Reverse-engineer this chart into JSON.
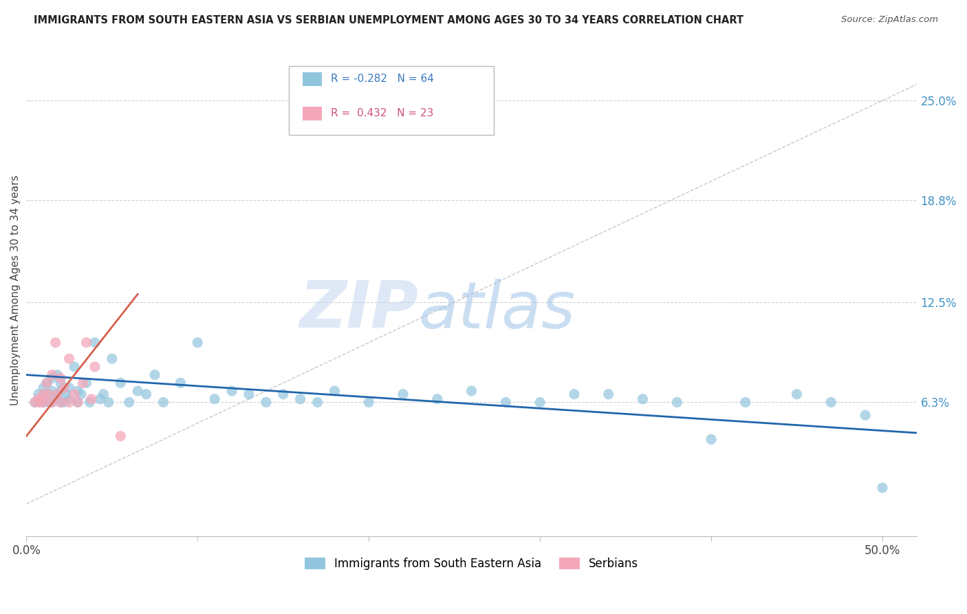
{
  "title": "IMMIGRANTS FROM SOUTH EASTERN ASIA VS SERBIAN UNEMPLOYMENT AMONG AGES 30 TO 34 YEARS CORRELATION CHART",
  "source": "Source: ZipAtlas.com",
  "ylabel": "Unemployment Among Ages 30 to 34 years",
  "y_tick_labels_right": [
    "6.3%",
    "12.5%",
    "18.8%",
    "25.0%"
  ],
  "y_tick_values_right": [
    0.063,
    0.125,
    0.188,
    0.25
  ],
  "xlim": [
    0.0,
    0.52
  ],
  "ylim": [
    -0.02,
    0.285
  ],
  "blue_color": "#92c5de",
  "pink_color": "#f4a7b9",
  "blue_label": "Immigrants from South Eastern Asia",
  "pink_label": "Serbians",
  "blue_R": -0.282,
  "blue_N": 64,
  "pink_R": 0.432,
  "pink_N": 23,
  "watermark_zip": "ZIP",
  "watermark_atlas": "atlas",
  "grid_color": "#d0d0d0",
  "blue_scatter_x": [
    0.005,
    0.007,
    0.008,
    0.01,
    0.01,
    0.012,
    0.012,
    0.013,
    0.015,
    0.015,
    0.015,
    0.017,
    0.018,
    0.018,
    0.02,
    0.02,
    0.02,
    0.022,
    0.023,
    0.025,
    0.025,
    0.028,
    0.03,
    0.03,
    0.032,
    0.035,
    0.037,
    0.04,
    0.043,
    0.045,
    0.048,
    0.05,
    0.055,
    0.06,
    0.065,
    0.07,
    0.075,
    0.08,
    0.09,
    0.1,
    0.11,
    0.12,
    0.13,
    0.14,
    0.15,
    0.16,
    0.17,
    0.18,
    0.2,
    0.22,
    0.24,
    0.26,
    0.28,
    0.3,
    0.32,
    0.34,
    0.36,
    0.38,
    0.4,
    0.42,
    0.45,
    0.47,
    0.49,
    0.5
  ],
  "blue_scatter_y": [
    0.063,
    0.068,
    0.063,
    0.072,
    0.063,
    0.075,
    0.068,
    0.063,
    0.07,
    0.063,
    0.078,
    0.065,
    0.068,
    0.08,
    0.063,
    0.07,
    0.075,
    0.063,
    0.068,
    0.065,
    0.072,
    0.085,
    0.063,
    0.07,
    0.068,
    0.075,
    0.063,
    0.1,
    0.065,
    0.068,
    0.063,
    0.09,
    0.075,
    0.063,
    0.07,
    0.068,
    0.08,
    0.063,
    0.075,
    0.1,
    0.065,
    0.07,
    0.068,
    0.063,
    0.068,
    0.065,
    0.063,
    0.07,
    0.063,
    0.068,
    0.065,
    0.07,
    0.063,
    0.063,
    0.068,
    0.068,
    0.065,
    0.063,
    0.04,
    0.063,
    0.068,
    0.063,
    0.055,
    0.01
  ],
  "pink_scatter_x": [
    0.005,
    0.007,
    0.008,
    0.01,
    0.01,
    0.012,
    0.013,
    0.015,
    0.015,
    0.017,
    0.018,
    0.02,
    0.02,
    0.022,
    0.025,
    0.025,
    0.028,
    0.03,
    0.033,
    0.035,
    0.038,
    0.04,
    0.055
  ],
  "pink_scatter_y": [
    0.063,
    0.065,
    0.063,
    0.068,
    0.063,
    0.075,
    0.068,
    0.063,
    0.08,
    0.1,
    0.068,
    0.063,
    0.078,
    0.072,
    0.063,
    0.09,
    0.068,
    0.063,
    0.075,
    0.1,
    0.065,
    0.085,
    0.042
  ],
  "blue_line_x": [
    0.0,
    0.52
  ],
  "blue_line_y": [
    0.08,
    0.044
  ],
  "pink_line_x": [
    0.0,
    0.065
  ],
  "pink_line_y": [
    0.042,
    0.13
  ],
  "diag_line_x": [
    0.0,
    0.52
  ],
  "diag_line_y": [
    0.0,
    0.26
  ],
  "diag_line_color": "#c8c8c8"
}
